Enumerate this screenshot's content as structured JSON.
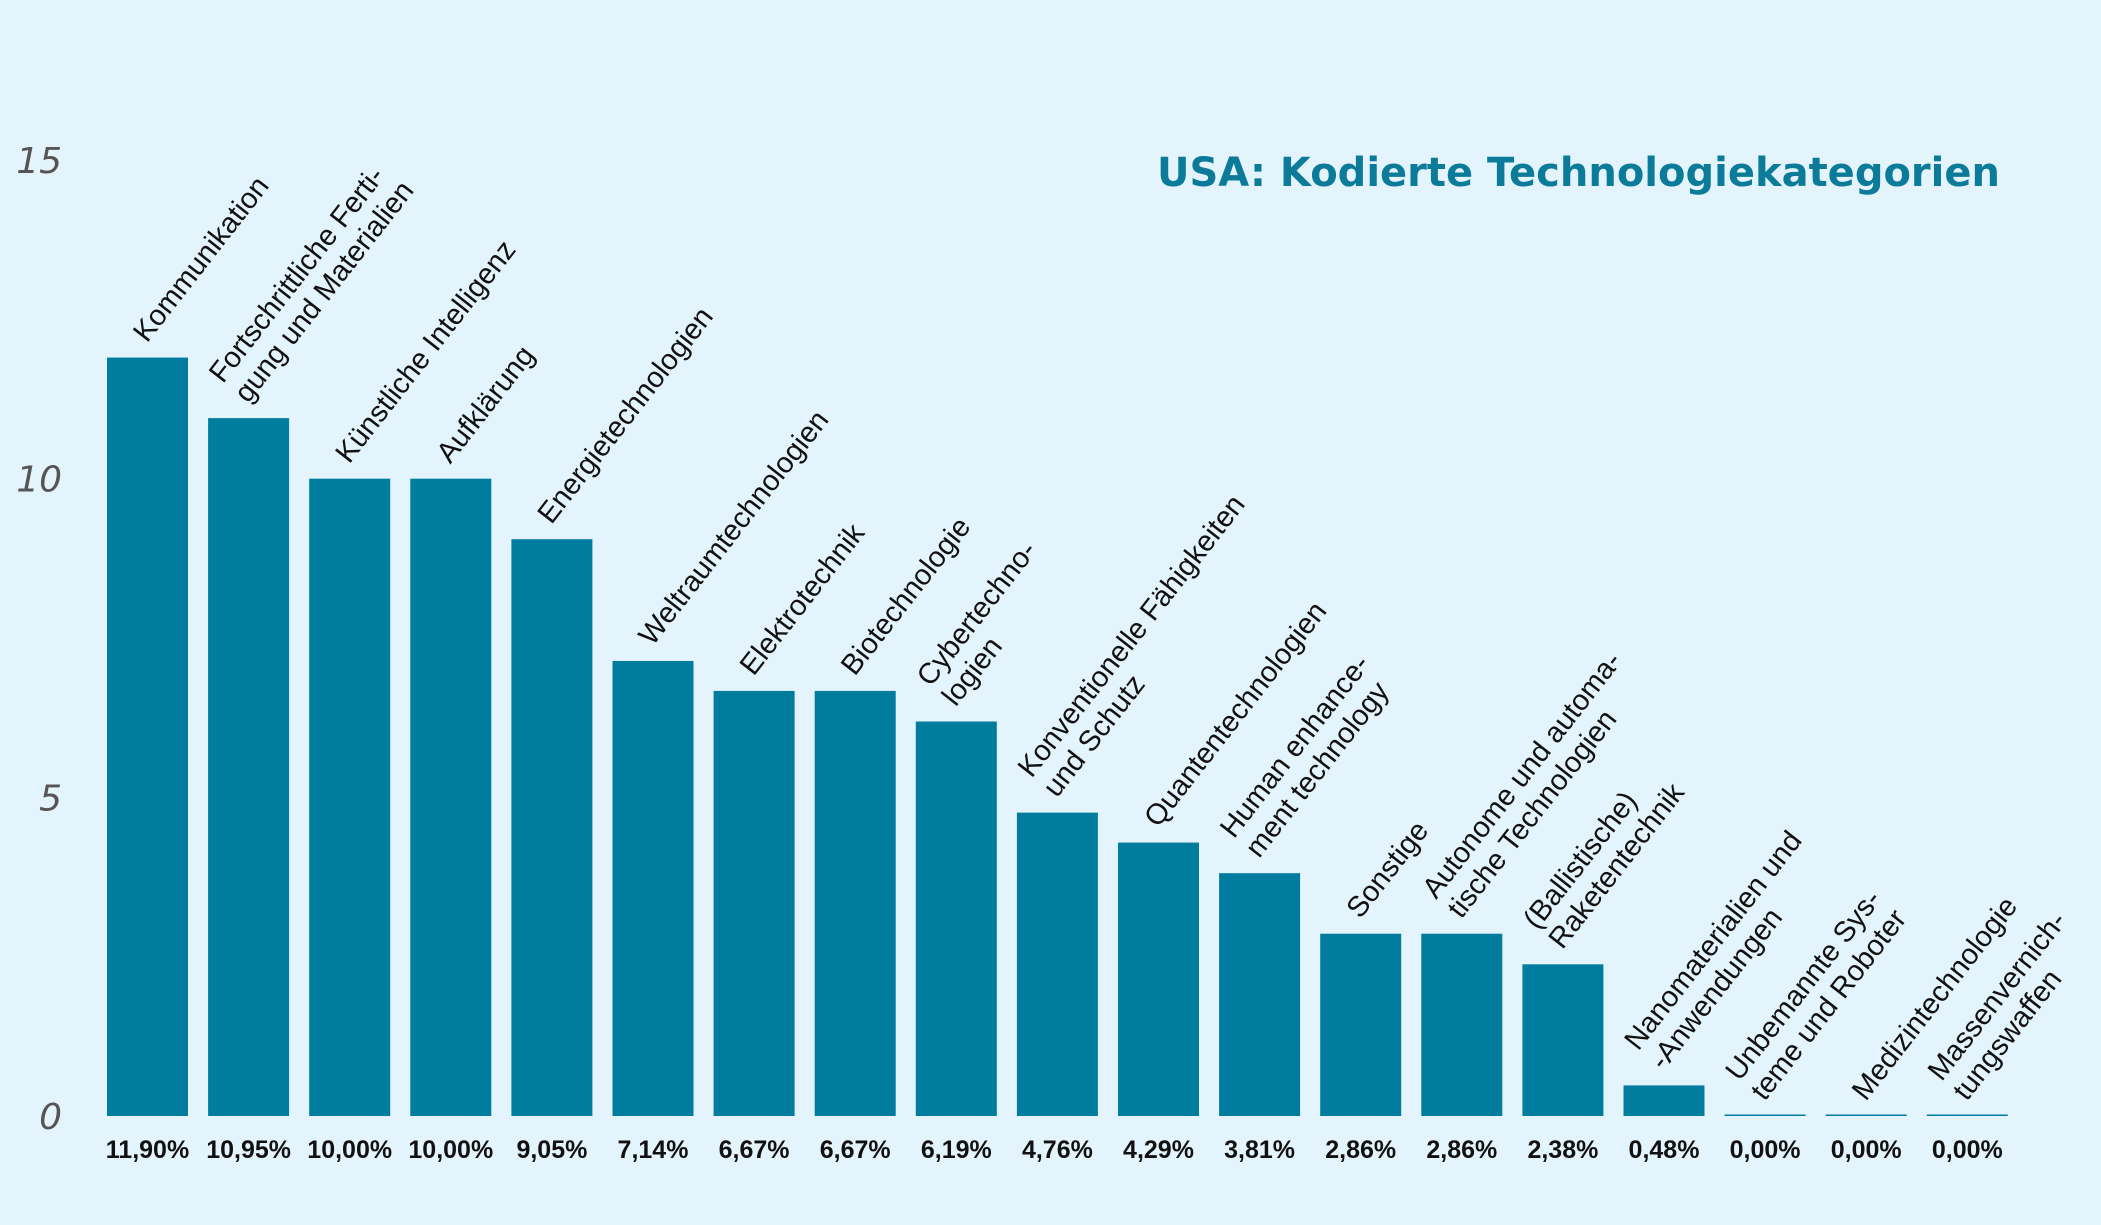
{
  "chart_data": {
    "type": "bar",
    "title": "USA: Kodierte Technologiekategorien",
    "xlabel": "",
    "ylabel": "",
    "ylim": [
      0,
      15
    ],
    "yticks": [
      "0",
      "5",
      "10",
      "15"
    ],
    "grid": false,
    "bar_color": "#007c9e",
    "title_color": "#0c7b99",
    "background_color": "#e4f4fd",
    "categories": [
      "Kommunikation",
      "Fortschrittliche Ferti- gung und Materialien",
      "Künstliche Intelligenz",
      "Aufklärung",
      "Energietechnologien",
      "Weltraumtechnologien",
      "Elektrotechnik",
      "Biotechnologie",
      "Cybertechno- logien",
      "Konventionelle Fähigkeiten und Schutz",
      "Quantentechnologien",
      "Human enhance- ment technology",
      "Sonstige",
      "Autonome und automa- tische Technologien",
      "(Ballistische) Raketentechnik",
      "Nanomaterialien und -Anwendungen",
      "Unbemannte Sys- teme und Roboter",
      "Medizintechnologie",
      "Massenvernich- tungswaffen"
    ],
    "values": [
      11.9,
      10.95,
      10.0,
      10.0,
      9.05,
      7.14,
      6.67,
      6.67,
      6.19,
      4.76,
      4.29,
      3.81,
      2.86,
      2.86,
      2.38,
      0.48,
      0.0,
      0.0,
      0.0
    ],
    "value_labels": [
      "11,90%",
      "10,95%",
      "10,00%",
      "10,00%",
      "9,05%",
      "7,14%",
      "6,67%",
      "6,67%",
      "6,19%",
      "4,76%",
      "4,29%",
      "3,81%",
      "2,86%",
      "2,86%",
      "2,38%",
      "0,48%",
      "0,00%",
      "0,00%",
      "0,00%"
    ],
    "category_label_lines": [
      [
        "Kommunikation"
      ],
      [
        "Fortschrittliche Ferti-",
        "gung und Materialien"
      ],
      [
        "Künstliche Intelligenz"
      ],
      [
        "Aufklärung"
      ],
      [
        "Energietechnologien"
      ],
      [
        "Weltraumtechnologien"
      ],
      [
        "Elektrotechnik"
      ],
      [
        "Biotechnologie"
      ],
      [
        "Cybertechno-",
        "logien"
      ],
      [
        "Konventionelle Fähigkeiten",
        "und Schutz"
      ],
      [
        "Quantentechnologien"
      ],
      [
        "Human enhance-",
        "ment technology"
      ],
      [
        "Sonstige"
      ],
      [
        "Autonome und automa-",
        "tische Technologien"
      ],
      [
        "(Ballistische)",
        "Raketentechnik"
      ],
      [
        "Nanomaterialien und",
        "-Anwendungen"
      ],
      [
        "Unbemannte Sys-",
        "teme und Roboter"
      ],
      [
        "Medizintechnologie"
      ],
      [
        "Massenvernich-",
        "tungswaffen"
      ]
    ]
  }
}
